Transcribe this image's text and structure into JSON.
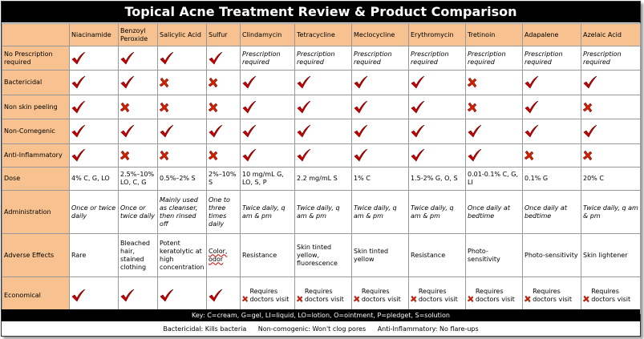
{
  "title": "Topical Acne Treatment Review & Product Comparison",
  "columns": [
    "Niacinamide",
    "Benzoyl Peroxide",
    "Salicylic Acid",
    "Sulfur",
    "Clindamycin",
    "Tetracycline",
    "Meclocycline",
    "Erythromycin",
    "Tretinoin",
    "Adapalene",
    "Azelaic Acid"
  ],
  "rows": [
    {
      "label": "No Prescription required",
      "cells": [
        "check",
        "check",
        "check",
        "check",
        "Prescription required",
        "Prescription required",
        "Prescription required",
        "Prescription required",
        "Prescription required",
        "Prescription required",
        "Prescription required"
      ]
    },
    {
      "label": "Bactericidal",
      "cells": [
        "check",
        "check",
        "x",
        "x",
        "check",
        "check",
        "check",
        "check",
        "x",
        "check",
        "check"
      ]
    },
    {
      "label": "Non skin peeling",
      "cells": [
        "check",
        "x",
        "x",
        "x",
        "check",
        "check",
        "check",
        "check",
        "x",
        "check",
        "x"
      ]
    },
    {
      "label": "Non-Comegenic",
      "cells": [
        "check",
        "check",
        "check",
        "check",
        "check",
        "check",
        "check",
        "check",
        "check",
        "check",
        "check"
      ]
    },
    {
      "label": "Anti-Inflammatory",
      "cells": [
        "check",
        "x",
        "x",
        "x",
        "check",
        "check",
        "check",
        "check",
        "check",
        "x",
        "x"
      ]
    },
    {
      "label": "Dose",
      "cells": [
        "4% C, G, LO",
        "2.5%–10% LO, C, G",
        "0.5%–2% S",
        "2%–10% S",
        "10 mg/mL G, LO, S, P",
        "2.2 mg/mL S",
        "1% C",
        "1.5-2% G, O, S",
        "0.01-0.1% C, G, LI",
        "0.1% G",
        "20% C"
      ]
    },
    {
      "label": "Administration",
      "cells": [
        "Once or twice daily",
        "Once or twice daily",
        "Mainly used as cleanser, then rinsed off",
        "One to three times daily",
        "Twice daily, q am & pm",
        "Twice daily, q am & pm",
        "Twice daily, q am & pm",
        "Twice daily, q am & pm",
        "Once daily at bedtime",
        "Once daily at bedtime",
        "Twice daily, q am & pm"
      ]
    },
    {
      "label": "Adverse Effects",
      "cells": [
        "Rare",
        "Bleached hair, stained clothing",
        "Potent keratolytic at high concentration",
        "Color, odor",
        "Resistance",
        "Skin tinted yellow, fluorescence",
        "Skin tinted yellow",
        "Resistance",
        "Photo-sensitivity",
        "Photo-sensitivity",
        "Skin lightener"
      ]
    },
    {
      "label": "Economical",
      "cells": [
        "check",
        "check",
        "check",
        "check",
        "Requires doctors visit",
        "Requires doctors visit",
        "Requires doctors visit",
        "Requires doctors visit",
        "Requires doctors visit",
        "Requires doctors visit",
        "Requires doctors visit"
      ]
    }
  ],
  "key": "Key: C=cream, G=gel, LI=liquid, LO=lotion, O=ointment, P=pledget, S=solution",
  "footnotes": [
    "Bactericidal: Kills bacteria",
    "Non-comogenic: Won't clog pores",
    "Anti-Inflammatory: No flare-ups"
  ],
  "icons": {
    "check": "checkmark-icon",
    "x": "x-mark-icon"
  },
  "colors": {
    "header_bg": "#f7c28f",
    "check": "#cc0000",
    "x": "#cc2200",
    "title_bg": "#000000"
  }
}
